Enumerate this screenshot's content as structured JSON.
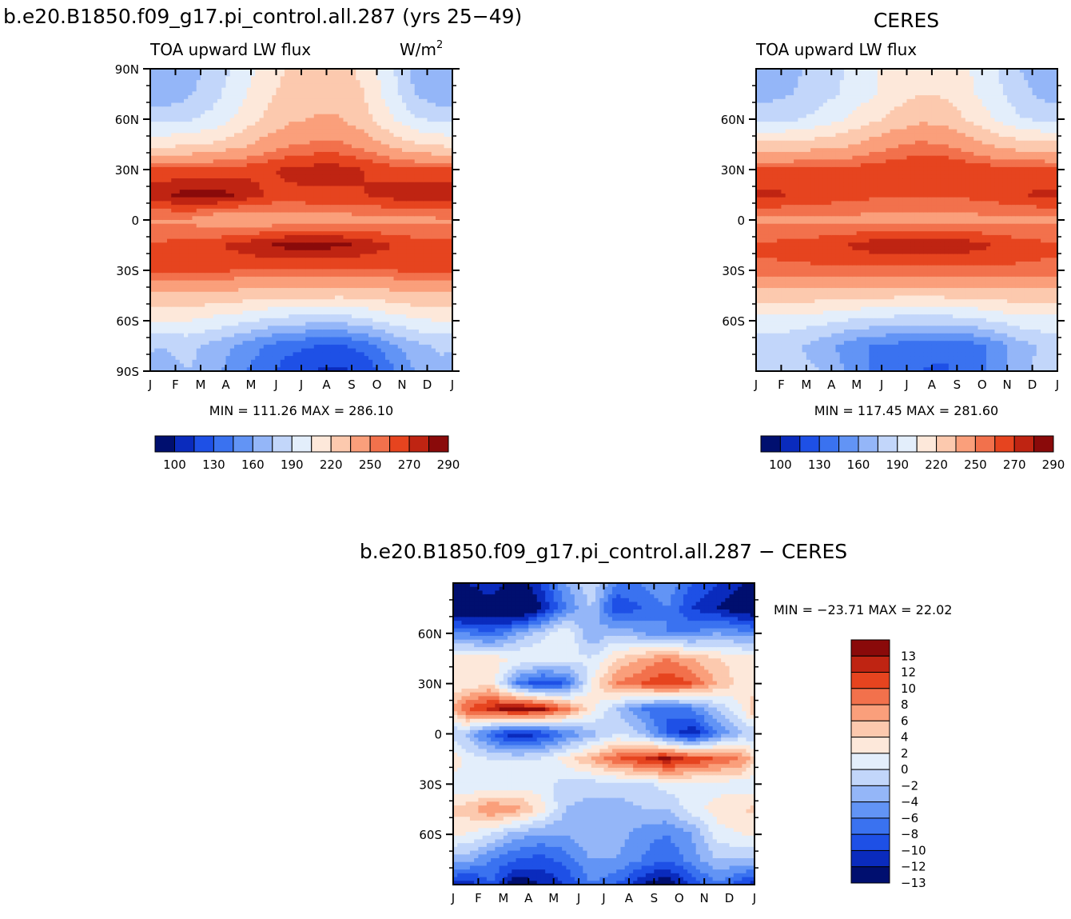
{
  "chart_data": [
    {
      "type": "heatmap",
      "title": "b.e20.B1850.f09_g17.pi_control.all.287 (yrs 25−49)",
      "left_string": "TOA upward LW flux",
      "units": "W/m",
      "units_sup": "2",
      "x_ticks": [
        "J",
        "F",
        "M",
        "A",
        "M",
        "J",
        "J",
        "A",
        "S",
        "O",
        "N",
        "D",
        "J"
      ],
      "y_ticks": [
        "90N",
        "60N",
        "30N",
        "0",
        "30S",
        "60S",
        "90S"
      ],
      "stats": "MIN =  111.26  MAX =  286.10",
      "colorbar": {
        "labels": [
          "100",
          "130",
          "160",
          "190",
          "220",
          "250",
          "270",
          "290"
        ],
        "colors": [
          "#000f6f",
          "#0a2bbd",
          "#1e50e6",
          "#3a72f0",
          "#6294f5",
          "#94b6f8",
          "#c2d6fa",
          "#e3eefb",
          "#fde8da",
          "#fcc9ae",
          "#fa9f7b",
          "#f2714c",
          "#e6441f",
          "#bf2412",
          "#8a0a0a"
        ]
      },
      "data": {
        "months": [
          "J",
          "F",
          "M",
          "A",
          "M",
          "J",
          "J",
          "A",
          "S",
          "O",
          "N",
          "D"
        ],
        "latitudes": [
          -90,
          -75,
          -60,
          -45,
          -30,
          -15,
          0,
          15,
          30,
          45,
          60,
          75,
          90
        ],
        "values": [
          [
            170,
            175,
            165,
            150,
            135,
            122,
            114,
            112,
            118,
            140,
            160,
            170
          ],
          [
            175,
            180,
            170,
            158,
            145,
            135,
            130,
            128,
            135,
            155,
            170,
            178
          ],
          [
            205,
            205,
            200,
            195,
            188,
            183,
            180,
            180,
            185,
            195,
            203,
            205
          ],
          [
            230,
            232,
            230,
            228,
            225,
            224,
            224,
            223,
            225,
            228,
            231,
            232
          ],
          [
            262,
            262,
            262,
            260,
            258,
            257,
            257,
            257,
            258,
            260,
            262,
            262
          ],
          [
            262,
            265,
            268,
            274,
            280,
            284,
            284,
            283,
            278,
            271,
            266,
            263
          ],
          [
            248,
            248,
            240,
            238,
            240,
            242,
            244,
            244,
            245,
            245,
            246,
            248
          ],
          [
            278,
            285,
            285,
            280,
            270,
            268,
            268,
            268,
            270,
            275,
            276,
            278
          ],
          [
            262,
            262,
            263,
            265,
            268,
            272,
            274,
            274,
            270,
            266,
            263,
            262
          ],
          [
            215,
            218,
            222,
            230,
            240,
            248,
            252,
            252,
            245,
            232,
            222,
            217
          ],
          [
            185,
            188,
            195,
            208,
            222,
            232,
            236,
            236,
            226,
            208,
            192,
            186
          ],
          [
            165,
            172,
            185,
            200,
            215,
            225,
            230,
            230,
            220,
            198,
            175,
            165
          ],
          [
            160,
            168,
            180,
            195,
            210,
            222,
            228,
            228,
            215,
            195,
            170,
            160
          ]
        ]
      }
    },
    {
      "type": "heatmap",
      "title": "CERES",
      "left_string": "TOA upward LW flux",
      "x_ticks": [
        "J",
        "F",
        "M",
        "A",
        "M",
        "J",
        "J",
        "A",
        "S",
        "O",
        "N",
        "D",
        "J"
      ],
      "y_ticks": [
        "60N",
        "30N",
        "0",
        "30S",
        "60S"
      ],
      "stats": "MIN =  117.45  MAX =  281.60",
      "colorbar": {
        "labels": [
          "100",
          "130",
          "160",
          "190",
          "220",
          "250",
          "270",
          "290"
        ],
        "colors": [
          "#000f6f",
          "#0a2bbd",
          "#1e50e6",
          "#3a72f0",
          "#6294f5",
          "#94b6f8",
          "#c2d6fa",
          "#e3eefb",
          "#fde8da",
          "#fcc9ae",
          "#fa9f7b",
          "#f2714c",
          "#e6441f",
          "#bf2412",
          "#8a0a0a"
        ]
      },
      "data": {
        "months": [
          "J",
          "F",
          "M",
          "A",
          "M",
          "J",
          "J",
          "A",
          "S",
          "O",
          "N",
          "D"
        ],
        "latitudes": [
          -90,
          -75,
          -60,
          -45,
          -30,
          -15,
          0,
          15,
          30,
          45,
          60,
          75,
          90
        ],
        "values": [
          [
            185,
            182,
            175,
            160,
            145,
            135,
            130,
            128,
            135,
            150,
            170,
            182
          ],
          [
            180,
            178,
            168,
            155,
            145,
            140,
            135,
            133,
            138,
            150,
            168,
            178
          ],
          [
            200,
            198,
            195,
            190,
            186,
            183,
            182,
            182,
            185,
            192,
            198,
            200
          ],
          [
            228,
            228,
            227,
            226,
            224,
            223,
            223,
            223,
            224,
            226,
            228,
            228
          ],
          [
            258,
            258,
            258,
            257,
            257,
            256,
            256,
            256,
            257,
            257,
            258,
            258
          ],
          [
            262,
            264,
            266,
            270,
            275,
            279,
            280,
            279,
            275,
            270,
            265,
            262
          ],
          [
            248,
            248,
            247,
            246,
            246,
            246,
            246,
            246,
            246,
            246,
            247,
            248
          ],
          [
            272,
            270,
            268,
            265,
            263,
            262,
            262,
            262,
            263,
            266,
            270,
            272
          ],
          [
            262,
            262,
            262,
            263,
            266,
            268,
            270,
            270,
            268,
            265,
            262,
            262
          ],
          [
            225,
            225,
            228,
            232,
            240,
            248,
            252,
            250,
            242,
            232,
            226,
            225
          ],
          [
            185,
            188,
            195,
            205,
            215,
            225,
            232,
            230,
            218,
            205,
            192,
            186
          ],
          [
            170,
            175,
            183,
            192,
            202,
            212,
            220,
            218,
            208,
            195,
            180,
            170
          ],
          [
            168,
            172,
            180,
            190,
            200,
            212,
            220,
            218,
            205,
            192,
            175,
            168
          ]
        ]
      }
    },
    {
      "type": "heatmap",
      "title": "b.e20.B1850.f09_g17.pi_control.all.287 − CERES",
      "x_ticks": [
        "J",
        "F",
        "M",
        "A",
        "M",
        "J",
        "J",
        "A",
        "S",
        "O",
        "N",
        "D",
        "J"
      ],
      "y_ticks": [
        "60N",
        "30N",
        "0",
        "30S",
        "60S"
      ],
      "stats": "MIN = −23.71  MAX =    22.02",
      "colorbar": {
        "labels": [
          "13",
          "12",
          "10",
          "8",
          "6",
          "4",
          "2",
          "0",
          "−2",
          "−4",
          "−6",
          "−8",
          "−10",
          "−12",
          "−13"
        ],
        "colors": [
          "#8a0a0a",
          "#bf2412",
          "#e6441f",
          "#f2714c",
          "#fa9f7b",
          "#fcc9ae",
          "#fde8da",
          "#e3eefb",
          "#c2d6fa",
          "#94b6f8",
          "#6294f5",
          "#3a72f0",
          "#1e50e6",
          "#0a2bbd",
          "#000f6f"
        ]
      },
      "data": {
        "months": [
          "J",
          "F",
          "M",
          "A",
          "M",
          "J",
          "J",
          "A",
          "S",
          "O",
          "N",
          "D"
        ],
        "latitudes": [
          -90,
          -75,
          -60,
          -45,
          -30,
          -15,
          0,
          15,
          30,
          45,
          60,
          75,
          90
        ],
        "values": [
          [
            -12,
            -8,
            -14,
            -12,
            -10,
            -6,
            -8,
            -12,
            -14,
            -10,
            -6,
            -10
          ],
          [
            -3,
            -6,
            -8,
            -9,
            -7,
            -4,
            -4,
            -6,
            -8,
            -5,
            -2,
            -2
          ],
          [
            2,
            0,
            -3,
            -4,
            -4,
            -2,
            -3,
            -5,
            -6,
            -4,
            1,
            2
          ],
          [
            5,
            8,
            7,
            3,
            -2,
            -3,
            -3,
            -2,
            -2,
            1,
            3,
            4
          ],
          [
            0,
            0,
            1,
            1,
            -1,
            -1,
            -1,
            -1,
            1,
            1,
            1,
            1
          ],
          [
            1,
            0,
            0,
            0,
            3,
            6,
            10,
            12,
            14,
            12,
            10,
            8
          ],
          [
            -2,
            -8,
            -12,
            -10,
            -6,
            -3,
            0,
            -2,
            -8,
            -12,
            -6,
            -2
          ],
          [
            10,
            13,
            15,
            14,
            9,
            3,
            -2,
            -6,
            -8,
            -6,
            -2,
            2
          ],
          [
            2,
            4,
            -6,
            -10,
            -8,
            2,
            8,
            10,
            12,
            10,
            6,
            3
          ],
          [
            3,
            3,
            2,
            2,
            1,
            0,
            4,
            6,
            8,
            6,
            4,
            3
          ],
          [
            -6,
            -8,
            -4,
            -1,
            2,
            -4,
            -2,
            -4,
            -6,
            -6,
            -4,
            -5
          ],
          [
            -16,
            -14,
            -18,
            -12,
            -6,
            -2,
            -10,
            -8,
            -6,
            -10,
            -12,
            -14
          ],
          [
            -12,
            -10,
            -14,
            -10,
            -4,
            0,
            -6,
            -6,
            -4,
            -8,
            -10,
            -12
          ]
        ]
      }
    }
  ]
}
